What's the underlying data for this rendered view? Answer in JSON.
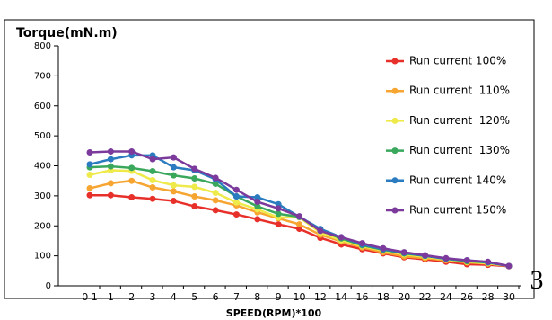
{
  "chart_data": {
    "type": "line",
    "title": "Torque(mN.m)",
    "x_label": "SPEED(RPM)*100",
    "annotation": "3",
    "categories": [
      "0 1",
      "1",
      "2",
      "3",
      "4",
      "5",
      "6",
      "7",
      "8",
      "9",
      "10",
      "12",
      "14",
      "16",
      "18",
      "20",
      "22",
      "24",
      "26",
      "28",
      "30"
    ],
    "ylim": [
      0,
      800
    ],
    "yticks": [
      0,
      100,
      200,
      300,
      400,
      500,
      600,
      700,
      800
    ],
    "legend": "upper right",
    "series": [
      {
        "name": "Run current 100%",
        "color": "#e8302a",
        "values": [
          302,
          302,
          295,
          290,
          283,
          265,
          252,
          238,
          222,
          205,
          190,
          160,
          138,
          122,
          108,
          95,
          88,
          80,
          72,
          70,
          65
        ]
      },
      {
        "name": "Run current  110%",
        "color": "#f7a531",
        "values": [
          325,
          342,
          350,
          328,
          315,
          298,
          285,
          268,
          245,
          225,
          205,
          170,
          148,
          128,
          112,
          98,
          92,
          85,
          78,
          74,
          66
        ]
      },
      {
        "name": "Run current  120%",
        "color": "#eeea4a",
        "values": [
          370,
          385,
          383,
          352,
          335,
          330,
          310,
          278,
          255,
          228,
          228,
          178,
          152,
          132,
          118,
          105,
          97,
          88,
          80,
          75,
          66
        ]
      },
      {
        "name": "Run current  130%",
        "color": "#3aa85c",
        "values": [
          395,
          398,
          393,
          382,
          368,
          358,
          340,
          298,
          265,
          240,
          230,
          185,
          158,
          135,
          120,
          108,
          100,
          90,
          82,
          78,
          66
        ]
      },
      {
        "name": "Run current 140%",
        "color": "#2a7bc0",
        "values": [
          405,
          422,
          435,
          435,
          395,
          385,
          355,
          298,
          295,
          272,
          230,
          190,
          162,
          138,
          122,
          110,
          100,
          90,
          85,
          78,
          66
        ]
      },
      {
        "name": "Run current 150%",
        "color": "#7b3a9c",
        "values": [
          445,
          448,
          448,
          422,
          428,
          390,
          360,
          320,
          280,
          258,
          232,
          183,
          162,
          142,
          125,
          112,
          102,
          92,
          85,
          80,
          66
        ]
      }
    ]
  }
}
